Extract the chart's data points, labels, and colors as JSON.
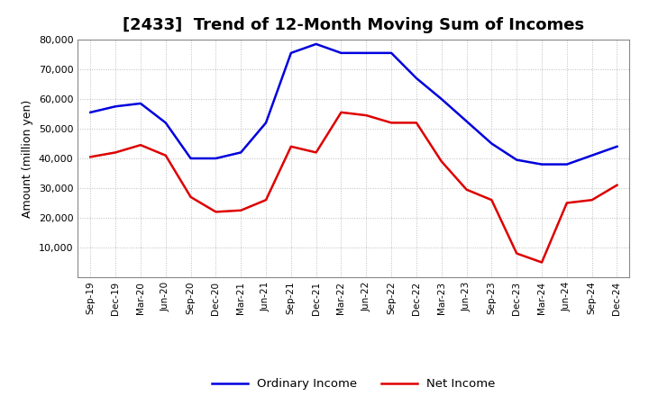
{
  "title": "[2433]  Trend of 12-Month Moving Sum of Incomes",
  "ylabel": "Amount (million yen)",
  "xlabel": "",
  "background_color": "#ffffff",
  "plot_background": "#ffffff",
  "grid_color": "#aaaaaa",
  "xlabels": [
    "Sep-19",
    "Dec-19",
    "Mar-20",
    "Jun-20",
    "Sep-20",
    "Dec-20",
    "Mar-21",
    "Jun-21",
    "Sep-21",
    "Dec-21",
    "Mar-22",
    "Jun-22",
    "Sep-22",
    "Dec-22",
    "Mar-23",
    "Jun-23",
    "Sep-23",
    "Dec-23",
    "Mar-24",
    "Jun-24",
    "Sep-24",
    "Dec-24"
  ],
  "ordinary_income": [
    55500,
    57500,
    58500,
    52000,
    40000,
    40000,
    42000,
    52000,
    75500,
    78500,
    75500,
    75500,
    75500,
    67000,
    60000,
    52500,
    45000,
    39500,
    38000,
    38000,
    41000,
    44000
  ],
  "net_income": [
    40500,
    42000,
    44500,
    41000,
    27000,
    22000,
    22500,
    26000,
    44000,
    42000,
    55500,
    54500,
    52000,
    52000,
    39000,
    29500,
    26000,
    8000,
    5000,
    25000,
    26000,
    31000
  ],
  "ordinary_color": "#0000dd",
  "net_color": "#dd0000",
  "ylim": [
    0,
    80000
  ],
  "yticks": [
    10000,
    20000,
    30000,
    40000,
    50000,
    60000,
    70000,
    80000
  ],
  "line_width": 1.8,
  "title_fontsize": 13,
  "legend_labels": [
    "Ordinary Income",
    "Net Income"
  ]
}
